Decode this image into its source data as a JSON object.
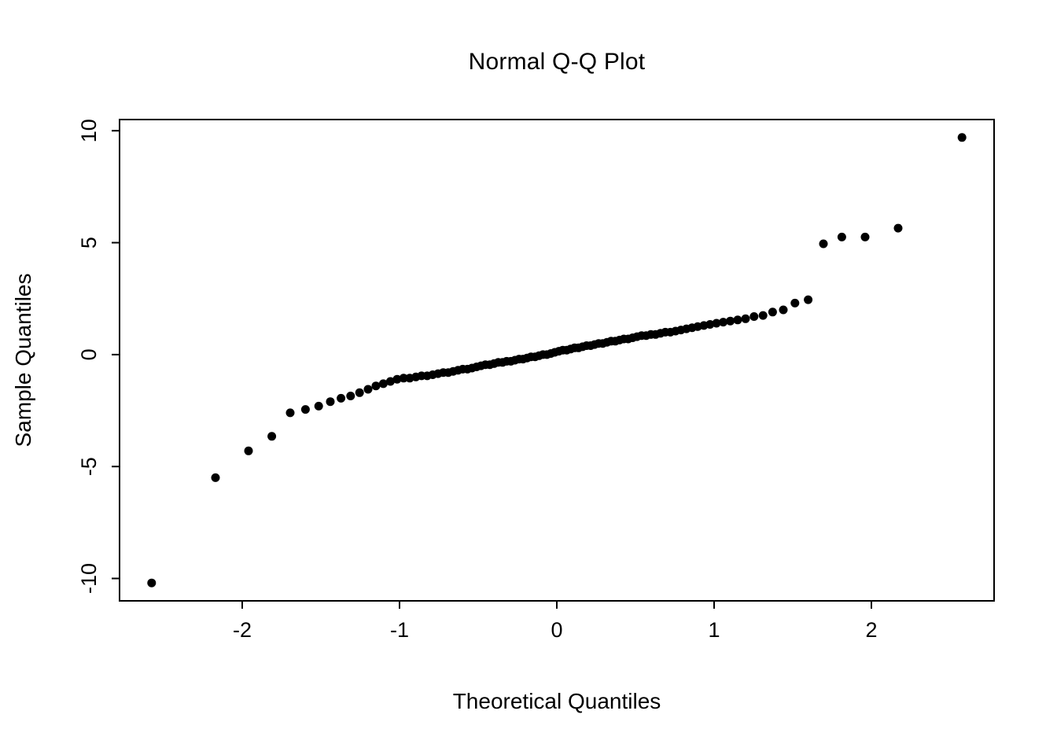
{
  "chart_data": {
    "type": "scatter",
    "title": "Normal Q-Q Plot",
    "xlabel": "Theoretical Quantiles",
    "ylabel": "Sample Quantiles",
    "x_ticks": [
      -2,
      -1,
      0,
      1,
      2
    ],
    "y_ticks": [
      -10,
      -5,
      0,
      5,
      10
    ],
    "xlim": [
      -2.78,
      2.78
    ],
    "ylim": [
      -11.0,
      10.5
    ],
    "grid": false,
    "legend": "none",
    "background_color": "#ffffff",
    "point_color": "#000000",
    "n_points": 100,
    "points": [
      [
        -2.576,
        -10.2
      ],
      [
        -2.17,
        -5.5
      ],
      [
        -1.96,
        -4.3
      ],
      [
        -1.812,
        -3.65
      ],
      [
        -1.695,
        -2.6
      ],
      [
        -1.598,
        -2.45
      ],
      [
        -1.514,
        -2.3
      ],
      [
        -1.44,
        -2.1
      ],
      [
        -1.372,
        -1.95
      ],
      [
        -1.311,
        -1.85
      ],
      [
        -1.254,
        -1.7
      ],
      [
        -1.2,
        -1.55
      ],
      [
        -1.15,
        -1.4
      ],
      [
        -1.103,
        -1.3
      ],
      [
        -1.058,
        -1.2
      ],
      [
        -1.015,
        -1.1
      ],
      [
        -0.974,
        -1.05
      ],
      [
        -0.935,
        -1.05
      ],
      [
        -0.896,
        -1.0
      ],
      [
        -0.86,
        -0.95
      ],
      [
        -0.824,
        -0.95
      ],
      [
        -0.789,
        -0.9
      ],
      [
        -0.755,
        -0.85
      ],
      [
        -0.722,
        -0.8
      ],
      [
        -0.69,
        -0.8
      ],
      [
        -0.659,
        -0.75
      ],
      [
        -0.628,
        -0.7
      ],
      [
        -0.598,
        -0.65
      ],
      [
        -0.568,
        -0.65
      ],
      [
        -0.539,
        -0.6
      ],
      [
        -0.51,
        -0.55
      ],
      [
        -0.482,
        -0.5
      ],
      [
        -0.454,
        -0.45
      ],
      [
        -0.426,
        -0.45
      ],
      [
        -0.399,
        -0.4
      ],
      [
        -0.372,
        -0.35
      ],
      [
        -0.345,
        -0.35
      ],
      [
        -0.319,
        -0.3
      ],
      [
        -0.292,
        -0.3
      ],
      [
        -0.266,
        -0.25
      ],
      [
        -0.24,
        -0.2
      ],
      [
        -0.215,
        -0.2
      ],
      [
        -0.189,
        -0.15
      ],
      [
        -0.164,
        -0.1
      ],
      [
        -0.138,
        -0.1
      ],
      [
        -0.113,
        -0.05
      ],
      [
        -0.088,
        0.0
      ],
      [
        -0.063,
        0.0
      ],
      [
        -0.038,
        0.05
      ],
      [
        -0.013,
        0.1
      ],
      [
        0.013,
        0.15
      ],
      [
        0.038,
        0.2
      ],
      [
        0.063,
        0.2
      ],
      [
        0.088,
        0.25
      ],
      [
        0.113,
        0.3
      ],
      [
        0.138,
        0.3
      ],
      [
        0.164,
        0.35
      ],
      [
        0.189,
        0.4
      ],
      [
        0.215,
        0.4
      ],
      [
        0.24,
        0.45
      ],
      [
        0.266,
        0.5
      ],
      [
        0.292,
        0.5
      ],
      [
        0.319,
        0.55
      ],
      [
        0.345,
        0.6
      ],
      [
        0.372,
        0.6
      ],
      [
        0.399,
        0.65
      ],
      [
        0.426,
        0.7
      ],
      [
        0.454,
        0.7
      ],
      [
        0.482,
        0.75
      ],
      [
        0.51,
        0.8
      ],
      [
        0.539,
        0.85
      ],
      [
        0.568,
        0.85
      ],
      [
        0.598,
        0.9
      ],
      [
        0.628,
        0.9
      ],
      [
        0.659,
        0.95
      ],
      [
        0.69,
        1.0
      ],
      [
        0.722,
        1.0
      ],
      [
        0.755,
        1.05
      ],
      [
        0.789,
        1.1
      ],
      [
        0.824,
        1.15
      ],
      [
        0.86,
        1.2
      ],
      [
        0.896,
        1.25
      ],
      [
        0.935,
        1.3
      ],
      [
        0.974,
        1.35
      ],
      [
        1.015,
        1.4
      ],
      [
        1.058,
        1.45
      ],
      [
        1.103,
        1.5
      ],
      [
        1.15,
        1.55
      ],
      [
        1.2,
        1.6
      ],
      [
        1.254,
        1.7
      ],
      [
        1.311,
        1.75
      ],
      [
        1.372,
        1.9
      ],
      [
        1.44,
        2.0
      ],
      [
        1.514,
        2.3
      ],
      [
        1.598,
        2.45
      ],
      [
        1.695,
        4.95
      ],
      [
        1.812,
        5.25
      ],
      [
        1.96,
        5.25
      ],
      [
        2.17,
        5.65
      ],
      [
        2.576,
        9.7
      ]
    ]
  }
}
